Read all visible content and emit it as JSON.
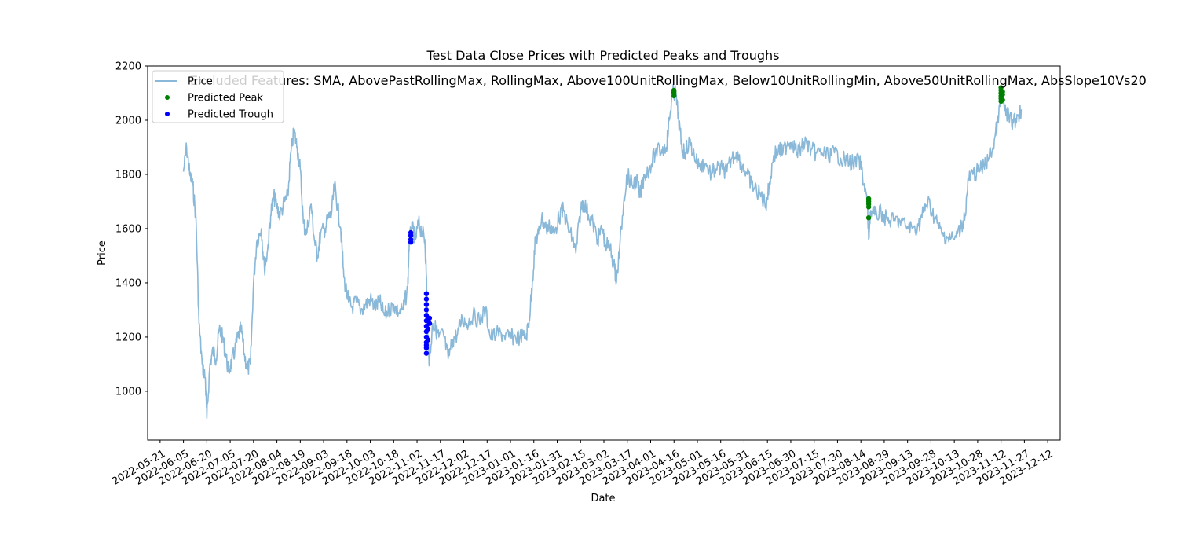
{
  "chart_data": {
    "type": "line",
    "title": "Test Data Close Prices with Predicted Peaks and Troughs",
    "xlabel": "Date",
    "ylabel": "Price",
    "annotation": "Excluded Features: SMA, AbovePastRollingMax, RollingMax, Above100UnitRollingMax, Below10UnitRollingMin, Above50UnitRollingMax, AbsSlope10Vs20",
    "legend_position": "upper-left",
    "grid": false,
    "xlim": [
      "2022-05-13",
      "2023-12-20"
    ],
    "ylim": [
      820,
      2200
    ],
    "yticks": [
      1000,
      1200,
      1400,
      1600,
      1800,
      2000,
      2200
    ],
    "xticks": [
      "2022-05-21",
      "2022-06-05",
      "2022-06-20",
      "2022-07-05",
      "2022-07-20",
      "2022-08-04",
      "2022-08-19",
      "2022-09-03",
      "2022-09-18",
      "2022-10-03",
      "2022-10-18",
      "2022-11-02",
      "2022-11-17",
      "2022-12-02",
      "2022-12-17",
      "2023-01-01",
      "2023-01-16",
      "2023-01-31",
      "2023-02-15",
      "2023-03-02",
      "2023-03-17",
      "2023-04-01",
      "2023-04-16",
      "2023-05-01",
      "2023-05-16",
      "2023-05-31",
      "2023-06-15",
      "2023-06-30",
      "2023-07-15",
      "2023-07-30",
      "2023-08-14",
      "2023-08-29",
      "2023-09-13",
      "2023-09-28",
      "2023-10-13",
      "2023-10-28",
      "2023-11-12",
      "2023-11-27",
      "2023-12-12"
    ],
    "series": [
      {
        "name": "Price",
        "kind": "line",
        "color": "#8ab8d8",
        "points": [
          [
            "2022-06-05",
            1810
          ],
          [
            "2022-06-07",
            1900
          ],
          [
            "2022-06-09",
            1800
          ],
          [
            "2022-06-11",
            1760
          ],
          [
            "2022-06-13",
            1640
          ],
          [
            "2022-06-15",
            1250
          ],
          [
            "2022-06-17",
            1100
          ],
          [
            "2022-06-19",
            1050
          ],
          [
            "2022-06-20",
            900
          ],
          [
            "2022-06-22",
            1100
          ],
          [
            "2022-06-24",
            1150
          ],
          [
            "2022-06-26",
            1120
          ],
          [
            "2022-06-28",
            1230
          ],
          [
            "2022-06-30",
            1200
          ],
          [
            "2022-07-02",
            1140
          ],
          [
            "2022-07-04",
            1070
          ],
          [
            "2022-07-06",
            1110
          ],
          [
            "2022-07-08",
            1150
          ],
          [
            "2022-07-10",
            1200
          ],
          [
            "2022-07-12",
            1230
          ],
          [
            "2022-07-14",
            1140
          ],
          [
            "2022-07-16",
            1080
          ],
          [
            "2022-07-18",
            1100
          ],
          [
            "2022-07-20",
            1400
          ],
          [
            "2022-07-22",
            1550
          ],
          [
            "2022-07-25",
            1600
          ],
          [
            "2022-07-27",
            1450
          ],
          [
            "2022-07-29",
            1520
          ],
          [
            "2022-07-31",
            1650
          ],
          [
            "2022-08-02",
            1720
          ],
          [
            "2022-08-04",
            1680
          ],
          [
            "2022-08-06",
            1650
          ],
          [
            "2022-08-09",
            1700
          ],
          [
            "2022-08-11",
            1720
          ],
          [
            "2022-08-13",
            1880
          ],
          [
            "2022-08-15",
            1960
          ],
          [
            "2022-08-17",
            1900
          ],
          [
            "2022-08-19",
            1820
          ],
          [
            "2022-08-21",
            1620
          ],
          [
            "2022-08-23",
            1580
          ],
          [
            "2022-08-26",
            1690
          ],
          [
            "2022-08-28",
            1560
          ],
          [
            "2022-08-30",
            1500
          ],
          [
            "2022-09-01",
            1580
          ],
          [
            "2022-09-04",
            1600
          ],
          [
            "2022-09-06",
            1640
          ],
          [
            "2022-09-08",
            1650
          ],
          [
            "2022-09-10",
            1760
          ],
          [
            "2022-09-12",
            1680
          ],
          [
            "2022-09-14",
            1600
          ],
          [
            "2022-09-16",
            1420
          ],
          [
            "2022-09-19",
            1330
          ],
          [
            "2022-09-21",
            1310
          ],
          [
            "2022-09-24",
            1330
          ],
          [
            "2022-09-27",
            1300
          ],
          [
            "2022-09-30",
            1320
          ],
          [
            "2022-10-03",
            1340
          ],
          [
            "2022-10-06",
            1310
          ],
          [
            "2022-10-09",
            1330
          ],
          [
            "2022-10-12",
            1280
          ],
          [
            "2022-10-15",
            1300
          ],
          [
            "2022-10-18",
            1320
          ],
          [
            "2022-10-21",
            1290
          ],
          [
            "2022-10-24",
            1300
          ],
          [
            "2022-10-27",
            1380
          ],
          [
            "2022-10-28",
            1560
          ],
          [
            "2022-10-30",
            1600
          ],
          [
            "2022-11-01",
            1560
          ],
          [
            "2022-11-03",
            1620
          ],
          [
            "2022-11-05",
            1590
          ],
          [
            "2022-11-07",
            1560
          ],
          [
            "2022-11-08",
            1430
          ],
          [
            "2022-11-09",
            1200
          ],
          [
            "2022-11-10",
            1100
          ],
          [
            "2022-11-12",
            1250
          ],
          [
            "2022-11-14",
            1230
          ],
          [
            "2022-11-16",
            1200
          ],
          [
            "2022-11-19",
            1210
          ],
          [
            "2022-11-22",
            1120
          ],
          [
            "2022-11-25",
            1190
          ],
          [
            "2022-11-28",
            1210
          ],
          [
            "2022-12-01",
            1270
          ],
          [
            "2022-12-04",
            1250
          ],
          [
            "2022-12-08",
            1280
          ],
          [
            "2022-12-12",
            1260
          ],
          [
            "2022-12-16",
            1300
          ],
          [
            "2022-12-19",
            1200
          ],
          [
            "2022-12-23",
            1210
          ],
          [
            "2022-12-27",
            1210
          ],
          [
            "2022-12-31",
            1200
          ],
          [
            "2023-01-03",
            1200
          ],
          [
            "2023-01-07",
            1200
          ],
          [
            "2023-01-11",
            1200
          ],
          [
            "2023-01-13",
            1260
          ],
          [
            "2023-01-15",
            1400
          ],
          [
            "2023-01-17",
            1560
          ],
          [
            "2023-01-19",
            1580
          ],
          [
            "2023-01-21",
            1640
          ],
          [
            "2023-01-24",
            1600
          ],
          [
            "2023-01-27",
            1610
          ],
          [
            "2023-01-29",
            1580
          ],
          [
            "2023-02-01",
            1640
          ],
          [
            "2023-02-04",
            1670
          ],
          [
            "2023-02-07",
            1600
          ],
          [
            "2023-02-10",
            1560
          ],
          [
            "2023-02-12",
            1510
          ],
          [
            "2023-02-15",
            1670
          ],
          [
            "2023-02-17",
            1700
          ],
          [
            "2023-02-20",
            1650
          ],
          [
            "2023-02-23",
            1620
          ],
          [
            "2023-02-26",
            1560
          ],
          [
            "2023-03-01",
            1600
          ],
          [
            "2023-03-03",
            1540
          ],
          [
            "2023-03-06",
            1530
          ],
          [
            "2023-03-09",
            1450
          ],
          [
            "2023-03-10",
            1400
          ],
          [
            "2023-03-12",
            1520
          ],
          [
            "2023-03-15",
            1720
          ],
          [
            "2023-03-17",
            1800
          ],
          [
            "2023-03-20",
            1760
          ],
          [
            "2023-03-23",
            1780
          ],
          [
            "2023-03-25",
            1720
          ],
          [
            "2023-03-28",
            1800
          ],
          [
            "2023-03-31",
            1820
          ],
          [
            "2023-04-04",
            1880
          ],
          [
            "2023-04-08",
            1890
          ],
          [
            "2023-04-11",
            1900
          ],
          [
            "2023-04-13",
            2000
          ],
          [
            "2023-04-15",
            2100
          ],
          [
            "2023-04-17",
            2100
          ],
          [
            "2023-04-19",
            2000
          ],
          [
            "2023-04-21",
            1900
          ],
          [
            "2023-04-23",
            1880
          ],
          [
            "2023-04-26",
            1920
          ],
          [
            "2023-04-29",
            1870
          ],
          [
            "2023-05-02",
            1830
          ],
          [
            "2023-05-06",
            1840
          ],
          [
            "2023-05-10",
            1800
          ],
          [
            "2023-05-13",
            1820
          ],
          [
            "2023-05-17",
            1820
          ],
          [
            "2023-05-20",
            1810
          ],
          [
            "2023-05-23",
            1860
          ],
          [
            "2023-05-26",
            1880
          ],
          [
            "2023-05-30",
            1830
          ],
          [
            "2023-06-02",
            1800
          ],
          [
            "2023-06-05",
            1760
          ],
          [
            "2023-06-08",
            1740
          ],
          [
            "2023-06-11",
            1720
          ],
          [
            "2023-06-14",
            1690
          ],
          [
            "2023-06-16",
            1750
          ],
          [
            "2023-06-19",
            1870
          ],
          [
            "2023-06-22",
            1890
          ],
          [
            "2023-06-25",
            1880
          ],
          [
            "2023-06-28",
            1920
          ],
          [
            "2023-07-01",
            1920
          ],
          [
            "2023-07-04",
            1880
          ],
          [
            "2023-07-07",
            1900
          ],
          [
            "2023-07-10",
            1920
          ],
          [
            "2023-07-13",
            1890
          ],
          [
            "2023-07-16",
            1880
          ],
          [
            "2023-07-20",
            1880
          ],
          [
            "2023-07-24",
            1870
          ],
          [
            "2023-07-28",
            1880
          ],
          [
            "2023-08-01",
            1860
          ],
          [
            "2023-08-05",
            1850
          ],
          [
            "2023-08-09",
            1840
          ],
          [
            "2023-08-13",
            1850
          ],
          [
            "2023-08-15",
            1800
          ],
          [
            "2023-08-18",
            1700
          ],
          [
            "2023-08-19",
            1560
          ],
          [
            "2023-08-20",
            1660
          ],
          [
            "2023-08-23",
            1650
          ],
          [
            "2023-08-27",
            1660
          ],
          [
            "2023-08-31",
            1630
          ],
          [
            "2023-09-04",
            1630
          ],
          [
            "2023-09-08",
            1630
          ],
          [
            "2023-09-12",
            1610
          ],
          [
            "2023-09-16",
            1600
          ],
          [
            "2023-09-20",
            1610
          ],
          [
            "2023-09-23",
            1660
          ],
          [
            "2023-09-26",
            1700
          ],
          [
            "2023-09-29",
            1660
          ],
          [
            "2023-10-02",
            1620
          ],
          [
            "2023-10-05",
            1580
          ],
          [
            "2023-10-09",
            1570
          ],
          [
            "2023-10-13",
            1560
          ],
          [
            "2023-10-17",
            1600
          ],
          [
            "2023-10-20",
            1650
          ],
          [
            "2023-10-22",
            1780
          ],
          [
            "2023-10-25",
            1800
          ],
          [
            "2023-10-28",
            1810
          ],
          [
            "2023-11-01",
            1830
          ],
          [
            "2023-11-04",
            1860
          ],
          [
            "2023-11-07",
            1900
          ],
          [
            "2023-11-10",
            2000
          ],
          [
            "2023-11-12",
            2080
          ],
          [
            "2023-11-14",
            2050
          ],
          [
            "2023-11-17",
            2010
          ],
          [
            "2023-11-20",
            1990
          ],
          [
            "2023-11-23",
            2020
          ],
          [
            "2023-11-25",
            2040
          ]
        ]
      },
      {
        "name": "Predicted Peak",
        "kind": "scatter",
        "color": "#008000",
        "points": [
          [
            "2023-04-16",
            2090
          ],
          [
            "2023-04-16",
            2100
          ],
          [
            "2023-04-16",
            2105
          ],
          [
            "2023-04-16",
            2110
          ],
          [
            "2023-08-19",
            1640
          ],
          [
            "2023-08-19",
            1680
          ],
          [
            "2023-08-19",
            1690
          ],
          [
            "2023-08-19",
            1700
          ],
          [
            "2023-08-19",
            1710
          ],
          [
            "2023-11-12",
            2070
          ],
          [
            "2023-11-12",
            2080
          ],
          [
            "2023-11-12",
            2090
          ],
          [
            "2023-11-12",
            2100
          ],
          [
            "2023-11-12",
            2110
          ],
          [
            "2023-11-12",
            2120
          ],
          [
            "2023-11-13",
            2075
          ],
          [
            "2023-11-13",
            2095
          ],
          [
            "2023-11-13",
            2105
          ]
        ]
      },
      {
        "name": "Predicted Trough",
        "kind": "scatter",
        "color": "#0000ff",
        "points": [
          [
            "2022-10-29",
            1550
          ],
          [
            "2022-10-29",
            1560
          ],
          [
            "2022-10-29",
            1575
          ],
          [
            "2022-10-29",
            1585
          ],
          [
            "2022-11-08",
            1140
          ],
          [
            "2022-11-08",
            1160
          ],
          [
            "2022-11-08",
            1170
          ],
          [
            "2022-11-08",
            1180
          ],
          [
            "2022-11-08",
            1200
          ],
          [
            "2022-11-08",
            1220
          ],
          [
            "2022-11-08",
            1240
          ],
          [
            "2022-11-08",
            1260
          ],
          [
            "2022-11-08",
            1280
          ],
          [
            "2022-11-08",
            1300
          ],
          [
            "2022-11-08",
            1320
          ],
          [
            "2022-11-08",
            1340
          ],
          [
            "2022-11-08",
            1360
          ],
          [
            "2022-11-09",
            1190
          ],
          [
            "2022-11-09",
            1230
          ],
          [
            "2022-11-09",
            1270
          ],
          [
            "2022-11-10",
            1250
          ],
          [
            "2022-11-10",
            1270
          ]
        ]
      }
    ]
  }
}
